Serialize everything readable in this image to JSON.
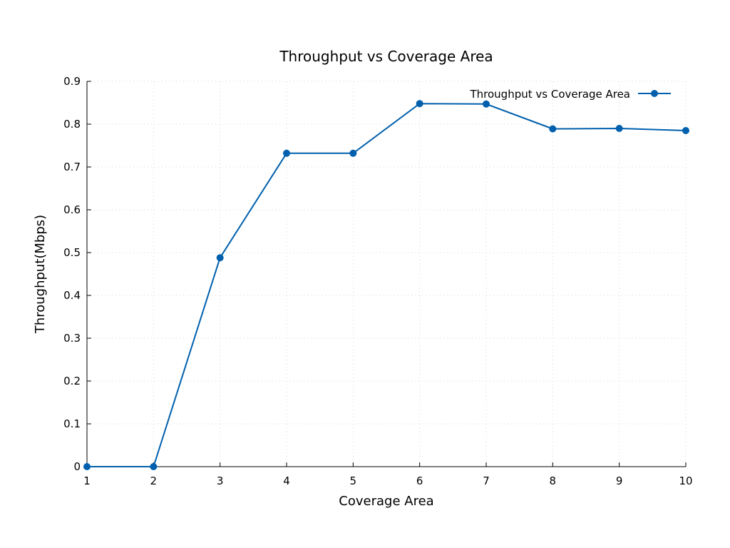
{
  "chart_data": {
    "type": "line",
    "title": "Throughput vs Coverage Area",
    "xlabel": "Coverage Area",
    "ylabel": "Throughput(Mbps)",
    "xlim": [
      1,
      10
    ],
    "ylim": [
      0,
      0.9
    ],
    "x_ticks": [
      1,
      2,
      3,
      4,
      5,
      6,
      7,
      8,
      9,
      10
    ],
    "x_tick_labels": [
      "1",
      "2",
      "3",
      "4",
      "5",
      "6",
      "7",
      "8",
      "9",
      "10"
    ],
    "y_ticks": [
      0,
      0.1,
      0.2,
      0.3,
      0.4,
      0.5,
      0.6,
      0.7,
      0.8,
      0.9
    ],
    "y_tick_labels": [
      "0",
      "0.1",
      "0.2",
      "0.3",
      "0.4",
      "0.5",
      "0.6",
      "0.7",
      "0.8",
      "0.9"
    ],
    "grid": true,
    "legend_position": "top-right",
    "series": [
      {
        "name": "Throughput vs Coverage Area",
        "color": "#0060ad",
        "marker": "circle",
        "x": [
          1,
          2,
          3,
          4,
          5,
          6,
          7,
          8,
          9,
          10
        ],
        "y": [
          0,
          0,
          0.488,
          0.732,
          0.732,
          0.848,
          0.847,
          0.789,
          0.79,
          0.785
        ]
      }
    ]
  }
}
